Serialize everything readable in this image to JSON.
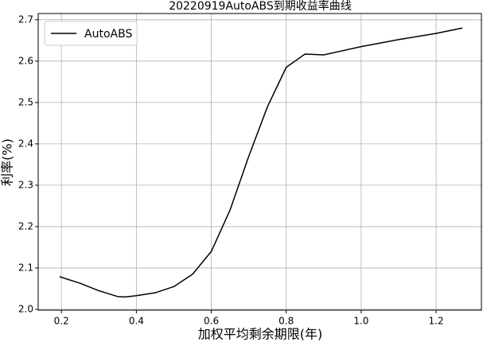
{
  "chart_data": {
    "type": "line",
    "title": "20220919AutoABS到期收益率曲线",
    "xlabel": "加权平均剩余期限(年)",
    "ylabel": "利率(%)",
    "x": [
      0.195,
      0.25,
      0.3,
      0.35,
      0.37,
      0.4,
      0.45,
      0.5,
      0.55,
      0.6,
      0.65,
      0.7,
      0.75,
      0.8,
      0.85,
      0.9,
      0.95,
      1.0,
      1.1,
      1.2,
      1.27
    ],
    "series": [
      {
        "name": "AutoABS",
        "color": "#000000",
        "values": [
          2.079,
          2.063,
          2.045,
          2.031,
          2.03,
          2.033,
          2.04,
          2.055,
          2.085,
          2.14,
          2.24,
          2.37,
          2.49,
          2.585,
          2.617,
          2.615,
          2.625,
          2.635,
          2.652,
          2.667,
          2.68
        ]
      }
    ],
    "xlim": [
      0.138,
      1.323
    ],
    "ylim": [
      1.998,
      2.715
    ],
    "xticks": [
      0.2,
      0.4,
      0.6,
      0.8,
      {
        "value": 1.0,
        "label": "1.0"
      },
      1.2
    ],
    "yticks": [
      {
        "value": 2.0,
        "label": "2.0"
      },
      2.1,
      2.2,
      2.3,
      2.4,
      2.5,
      2.6,
      2.7
    ],
    "grid": true,
    "legend": "upper-left"
  }
}
